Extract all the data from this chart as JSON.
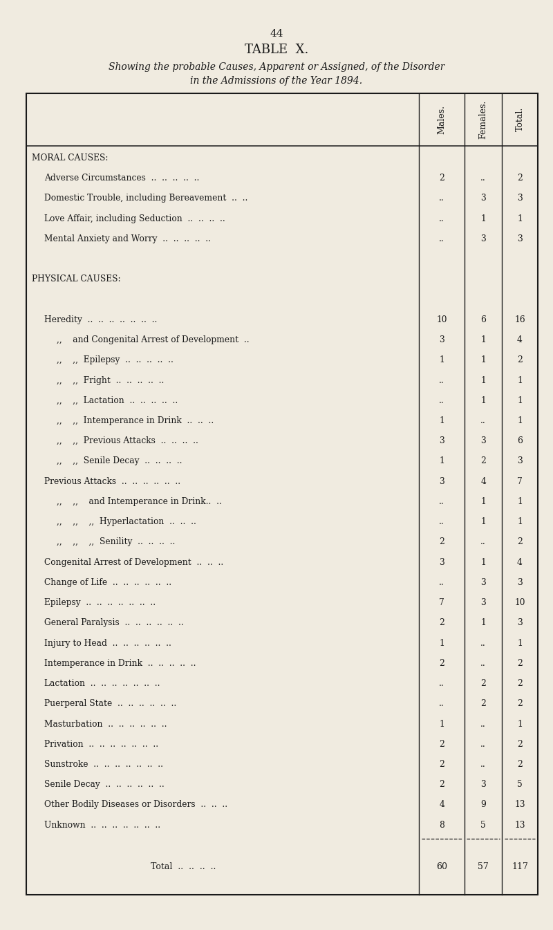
{
  "page_number": "44",
  "title": "TABLE  X.",
  "subtitle_line1": "Showing the probable Causes, Apparent or Assigned, of the Disorder",
  "subtitle_line2": "in the Admissions of the Year 1894.",
  "col_headers": [
    "Males.",
    "Females.",
    "Total."
  ],
  "background_color": "#f0ebe0",
  "text_color": "#1a1a1a",
  "rows": [
    {
      "label": "MORAL CAUSES:",
      "indent": 0,
      "males": "",
      "females": "",
      "total": "",
      "section_header": true
    },
    {
      "label": "Adverse Circumstances  ..  ..  ..  ..  ..",
      "indent": 1,
      "males": "2",
      "females": "..",
      "total": "2"
    },
    {
      "label": "Domestic Trouble, including Bereavement  ..  ..",
      "indent": 1,
      "males": "..",
      "females": "3",
      "total": "3"
    },
    {
      "label": "Love Affair, including Seduction  ..  ..  ..  ..",
      "indent": 1,
      "males": "..",
      "females": "1",
      "total": "1"
    },
    {
      "label": "Mental Anxiety and Worry  ..  ..  ..  ..  ..",
      "indent": 1,
      "males": "..",
      "females": "3",
      "total": "3"
    },
    {
      "label": "",
      "indent": 0,
      "males": "",
      "females": "",
      "total": "",
      "spacer": true
    },
    {
      "label": "PHYSICAL CAUSES:",
      "indent": 0,
      "males": "",
      "females": "",
      "total": "",
      "section_header": true
    },
    {
      "label": "",
      "indent": 0,
      "males": "",
      "females": "",
      "total": "",
      "spacer": true
    },
    {
      "label": "Heredity  ..  ..  ..  ..  ..  ..  ..",
      "indent": 1,
      "males": "10",
      "females": "6",
      "total": "16"
    },
    {
      "label": ",,    and Congenital Arrest of Development  ..",
      "indent": 2,
      "males": "3",
      "females": "1",
      "total": "4"
    },
    {
      "label": ",,    ,,  Epilepsy  ..  ..  ..  ..  ..",
      "indent": 2,
      "males": "1",
      "females": "1",
      "total": "2"
    },
    {
      "label": ",,    ,,  Fright  ..  ..  ..  ..  ..",
      "indent": 2,
      "males": "..",
      "females": "1",
      "total": "1"
    },
    {
      "label": ",,    ,,  Lactation  ..  ..  ..  ..  ..",
      "indent": 2,
      "males": "..",
      "females": "1",
      "total": "1"
    },
    {
      "label": ",,    ,,  Intemperance in Drink  ..  ..  ..",
      "indent": 2,
      "males": "1",
      "females": "..",
      "total": "1"
    },
    {
      "label": ",,    ,,  Previous Attacks  ..  ..  ..  ..",
      "indent": 2,
      "males": "3",
      "females": "3",
      "total": "6"
    },
    {
      "label": ",,    ,,  Senile Decay  ..  ..  ..  ..",
      "indent": 2,
      "males": "1",
      "females": "2",
      "total": "3"
    },
    {
      "label": "Previous Attacks  ..  ..  ..  ..  ..  ..",
      "indent": 1,
      "males": "3",
      "females": "4",
      "total": "7"
    },
    {
      "label": ",,    ,,    and Intemperance in Drink..  ..",
      "indent": 2,
      "males": "..",
      "females": "1",
      "total": "1"
    },
    {
      "label": ",,    ,,    ,,  Hyperlactation  ..  ..  ..",
      "indent": 2,
      "males": "..",
      "females": "1",
      "total": "1"
    },
    {
      "label": ",,    ,,    ,,  Senility  ..  ..  ..  ..",
      "indent": 2,
      "males": "2",
      "females": "..",
      "total": "2"
    },
    {
      "label": "Congenital Arrest of Development  ..  ..  ..",
      "indent": 1,
      "males": "3",
      "females": "1",
      "total": "4"
    },
    {
      "label": "Change of Life  ..  ..  ..  ..  ..  ..",
      "indent": 1,
      "males": "..",
      "females": "3",
      "total": "3"
    },
    {
      "label": "Epilepsy  ..  ..  ..  ..  ..  ..  ..",
      "indent": 1,
      "males": "7",
      "females": "3",
      "total": "10"
    },
    {
      "label": "General Paralysis  ..  ..  ..  ..  ..  ..",
      "indent": 1,
      "males": "2",
      "females": "1",
      "total": "3"
    },
    {
      "label": "Injury to Head  ..  ..  ..  ..  ..  ..",
      "indent": 1,
      "males": "1",
      "females": "..",
      "total": "1"
    },
    {
      "label": "Intemperance in Drink  ..  ..  ..  ..  ..",
      "indent": 1,
      "males": "2",
      "females": "..",
      "total": "2"
    },
    {
      "label": "Lactation  ..  ..  ..  ..  ..  ..  ..",
      "indent": 1,
      "males": "..",
      "females": "2",
      "total": "2"
    },
    {
      "label": "Puerperal State  ..  ..  ..  ..  ..  ..",
      "indent": 1,
      "males": "..",
      "females": "2",
      "total": "2"
    },
    {
      "label": "Masturbation  ..  ..  ..  ..  ..  ..",
      "indent": 1,
      "males": "1",
      "females": "..",
      "total": "1"
    },
    {
      "label": "Privation  ..  ..  ..  ..  ..  ..  ..",
      "indent": 1,
      "males": "2",
      "females": "..",
      "total": "2"
    },
    {
      "label": "Sunstroke  ..  ..  ..  ..  ..  ..  ..",
      "indent": 1,
      "males": "2",
      "females": "..",
      "total": "2"
    },
    {
      "label": "Senile Decay  ..  ..  ..  ..  ..  ..",
      "indent": 1,
      "males": "2",
      "females": "3",
      "total": "5"
    },
    {
      "label": "Other Bodily Diseases or Disorders  ..  ..  ..",
      "indent": 1,
      "males": "4",
      "females": "9",
      "total": "13"
    },
    {
      "label": "Unknown  ..  ..  ..  ..  ..  ..  ..",
      "indent": 1,
      "males": "8",
      "females": "5",
      "total": "13"
    }
  ],
  "total_row": {
    "label": "Total  ..  ..  ..  ..",
    "males": "60",
    "females": "57",
    "total": "117"
  }
}
